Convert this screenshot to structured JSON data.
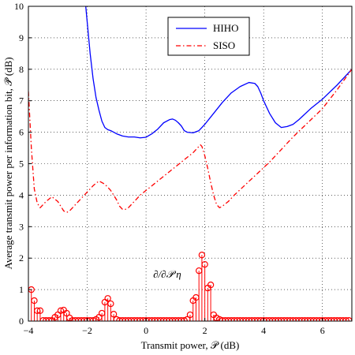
{
  "chart_data": {
    "type": "line",
    "xlabel": "Transmit power, 𝒫 (dB)",
    "ylabel": "Average transmit power per information bit, 𝒫̄ (dB)",
    "xlim": [
      -4,
      7
    ],
    "ylim": [
      0,
      10
    ],
    "xticks": [
      -4,
      -2,
      0,
      2,
      4,
      6
    ],
    "yticks": [
      0,
      1,
      2,
      3,
      4,
      5,
      6,
      7,
      8,
      9,
      10
    ],
    "grid": true,
    "legend_position": "top-right",
    "annotation": "∂/∂𝒫 η",
    "series": [
      {
        "name": "HIHO",
        "style": "solid",
        "color": "#0000ff",
        "x": [
          -2.05,
          -1.9,
          -1.8,
          -1.7,
          -1.6,
          -1.5,
          -1.4,
          -1.3,
          -1.2,
          -1.0,
          -0.8,
          -0.6,
          -0.4,
          -0.2,
          0.0,
          0.2,
          0.4,
          0.6,
          0.8,
          0.9,
          1.0,
          1.1,
          1.2,
          1.3,
          1.4,
          1.6,
          1.8,
          2.0,
          2.3,
          2.6,
          2.9,
          3.2,
          3.5,
          3.7,
          3.8,
          3.9,
          4.0,
          4.2,
          4.4,
          4.6,
          4.8,
          5.0,
          5.2,
          5.6,
          6.0,
          6.5,
          7.0
        ],
        "y": [
          10.0,
          8.5,
          7.7,
          7.1,
          6.7,
          6.35,
          6.15,
          6.08,
          6.05,
          5.95,
          5.88,
          5.85,
          5.85,
          5.82,
          5.84,
          5.95,
          6.1,
          6.3,
          6.4,
          6.42,
          6.38,
          6.3,
          6.2,
          6.05,
          6.0,
          5.98,
          6.05,
          6.25,
          6.6,
          6.95,
          7.25,
          7.45,
          7.58,
          7.55,
          7.45,
          7.25,
          7.0,
          6.6,
          6.3,
          6.15,
          6.18,
          6.25,
          6.4,
          6.75,
          7.05,
          7.5,
          8.0
        ]
      },
      {
        "name": "SISO",
        "style": "dash-dot",
        "color": "#ff0000",
        "x": [
          -4.0,
          -3.9,
          -3.8,
          -3.7,
          -3.6,
          -3.5,
          -3.4,
          -3.2,
          -3.0,
          -2.9,
          -2.8,
          -2.7,
          -2.6,
          -2.4,
          -2.2,
          -2.0,
          -1.8,
          -1.6,
          -1.4,
          -1.2,
          -1.0,
          -0.9,
          -0.8,
          -0.7,
          -0.6,
          -0.5,
          -0.4,
          -0.3,
          -0.2,
          0.0,
          0.4,
          0.8,
          1.2,
          1.6,
          1.8,
          1.85,
          1.9,
          2.0,
          2.1,
          2.2,
          2.3,
          2.4,
          2.5,
          2.6,
          2.8,
          3.0,
          3.4,
          3.8,
          4.2,
          4.6,
          5.0,
          5.5,
          6.0,
          6.5,
          7.0
        ],
        "y": [
          7.3,
          5.5,
          4.2,
          3.75,
          3.6,
          3.7,
          3.8,
          3.95,
          3.8,
          3.65,
          3.5,
          3.45,
          3.5,
          3.7,
          3.9,
          4.1,
          4.3,
          4.45,
          4.35,
          4.15,
          3.85,
          3.65,
          3.55,
          3.55,
          3.6,
          3.7,
          3.8,
          3.9,
          4.0,
          4.15,
          4.45,
          4.75,
          5.05,
          5.35,
          5.55,
          5.6,
          5.55,
          5.25,
          4.85,
          4.4,
          4.0,
          3.7,
          3.6,
          3.65,
          3.8,
          4.0,
          4.35,
          4.7,
          5.05,
          5.45,
          5.85,
          6.3,
          6.75,
          7.35,
          8.0
        ]
      },
      {
        "name": "",
        "style": "stem",
        "color": "#ff0000",
        "x": [
          -3.9,
          -3.8,
          -3.7,
          -3.6,
          -3.5,
          -3.4,
          -3.3,
          -3.2,
          -3.1,
          -3.0,
          -2.9,
          -2.8,
          -2.7,
          -2.6,
          -2.5,
          -2.4,
          -2.3,
          -2.2,
          -2.1,
          -2.0,
          -1.9,
          -1.8,
          -1.7,
          -1.6,
          -1.5,
          -1.4,
          -1.3,
          -1.2,
          -1.1,
          -1.0,
          -0.9,
          -0.8,
          -0.7,
          -0.6,
          -0.5,
          -0.4,
          -0.3,
          -0.2,
          -0.1,
          0.0,
          0.1,
          0.2,
          0.3,
          0.4,
          0.5,
          0.6,
          0.7,
          0.8,
          0.9,
          1.0,
          1.1,
          1.2,
          1.3,
          1.4,
          1.5,
          1.6,
          1.7,
          1.8,
          1.9,
          2.0,
          2.1,
          2.2,
          2.3,
          2.4,
          2.5,
          2.6,
          2.7,
          2.8,
          2.9,
          3.0,
          3.1,
          3.2,
          3.3,
          3.4,
          3.5,
          3.6,
          3.7,
          3.8,
          3.9,
          4.0,
          4.1,
          4.2,
          4.3,
          4.4,
          4.5,
          4.6,
          4.7,
          4.8,
          4.9,
          5.0,
          5.1,
          5.2,
          5.3,
          5.4,
          5.5,
          5.6,
          5.7,
          5.8,
          5.9,
          6.0,
          6.1,
          6.2,
          6.3,
          6.4,
          6.5,
          6.6,
          6.7,
          6.8,
          6.9
        ],
        "y": [
          1.0,
          0.65,
          0.33,
          0.33,
          0.02,
          0.02,
          0.02,
          0.02,
          0.12,
          0.2,
          0.33,
          0.35,
          0.25,
          0.1,
          0.02,
          0.02,
          0.02,
          0.02,
          0.02,
          0.02,
          0.02,
          0.02,
          0.05,
          0.12,
          0.25,
          0.6,
          0.72,
          0.55,
          0.22,
          0.05,
          0.02,
          0.02,
          0.02,
          0.02,
          0.02,
          0.02,
          0.02,
          0.02,
          0.02,
          0.02,
          0.02,
          0.02,
          0.02,
          0.02,
          0.02,
          0.02,
          0.02,
          0.02,
          0.02,
          0.02,
          0.02,
          0.02,
          0.02,
          0.05,
          0.2,
          0.65,
          0.75,
          1.6,
          2.1,
          1.8,
          1.05,
          1.15,
          0.2,
          0.1,
          0.05,
          0.02,
          0.02,
          0.02,
          0.02,
          0.02,
          0.02,
          0.02,
          0.02,
          0.02,
          0.02,
          0.02,
          0.02,
          0.02,
          0.02,
          0.02,
          0.02,
          0.02,
          0.02,
          0.02,
          0.02,
          0.02,
          0.02,
          0.02,
          0.02,
          0.02,
          0.02,
          0.02,
          0.02,
          0.02,
          0.02,
          0.02,
          0.02,
          0.02,
          0.02,
          0.02,
          0.02,
          0.02,
          0.02,
          0.02,
          0.02,
          0.02,
          0.02,
          0.02,
          0.02
        ]
      }
    ]
  }
}
